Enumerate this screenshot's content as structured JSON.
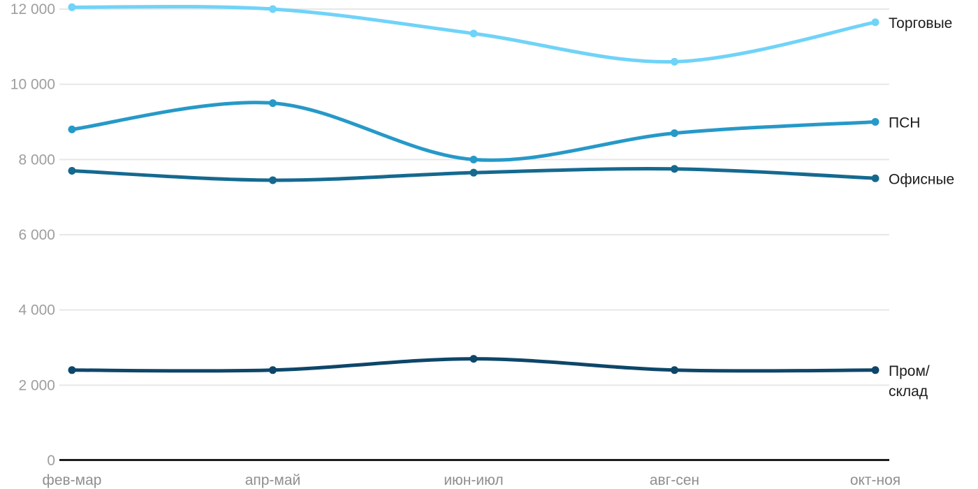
{
  "chart_data": {
    "type": "line",
    "title": "",
    "xlabel": "",
    "ylabel": "",
    "categories": [
      "фев-мар",
      "апр-май",
      "июн-июл",
      "авг-сен",
      "окт-ноя"
    ],
    "series": [
      {
        "name": "Торговые",
        "slug": "torgovye",
        "label_lines": [
          "Торговые"
        ],
        "color": "#70d3f8",
        "values": [
          12050,
          12000,
          11350,
          10600,
          11650
        ]
      },
      {
        "name": "ПСН",
        "slug": "psn",
        "label_lines": [
          "ПСН"
        ],
        "color": "#2699c8",
        "values": [
          8800,
          9500,
          8000,
          8700,
          9000
        ]
      },
      {
        "name": "Офисные",
        "slug": "ofisnye",
        "label_lines": [
          "Офисные"
        ],
        "color": "#15698f",
        "values": [
          7700,
          7450,
          7650,
          7750,
          7500
        ]
      },
      {
        "name": "Пром/склад",
        "slug": "prom-sklad",
        "label_lines": [
          "Пром/",
          "склад"
        ],
        "color": "#0d4669",
        "values": [
          2400,
          2400,
          2700,
          2400,
          2400
        ]
      }
    ],
    "ylim": [
      0,
      12000
    ],
    "y_ticks": [
      0,
      2000,
      4000,
      6000,
      8000,
      10000,
      12000
    ],
    "y_tick_labels": [
      "0",
      "2 000",
      "4 000",
      "6 000",
      "8 000",
      "10 000",
      "12 000"
    ],
    "grid": "horizontal",
    "legend_position": "right-of-line-end",
    "line_style": "smooth",
    "markers": "circle"
  },
  "colors": {
    "background": "#ffffff",
    "grid": "#e7e7e7",
    "axis_line": "#1c1c1c",
    "y_tick_label": "#9e9e9e",
    "x_tick_label": "#8f8f8f",
    "legend_text": "#1c1c1c"
  }
}
